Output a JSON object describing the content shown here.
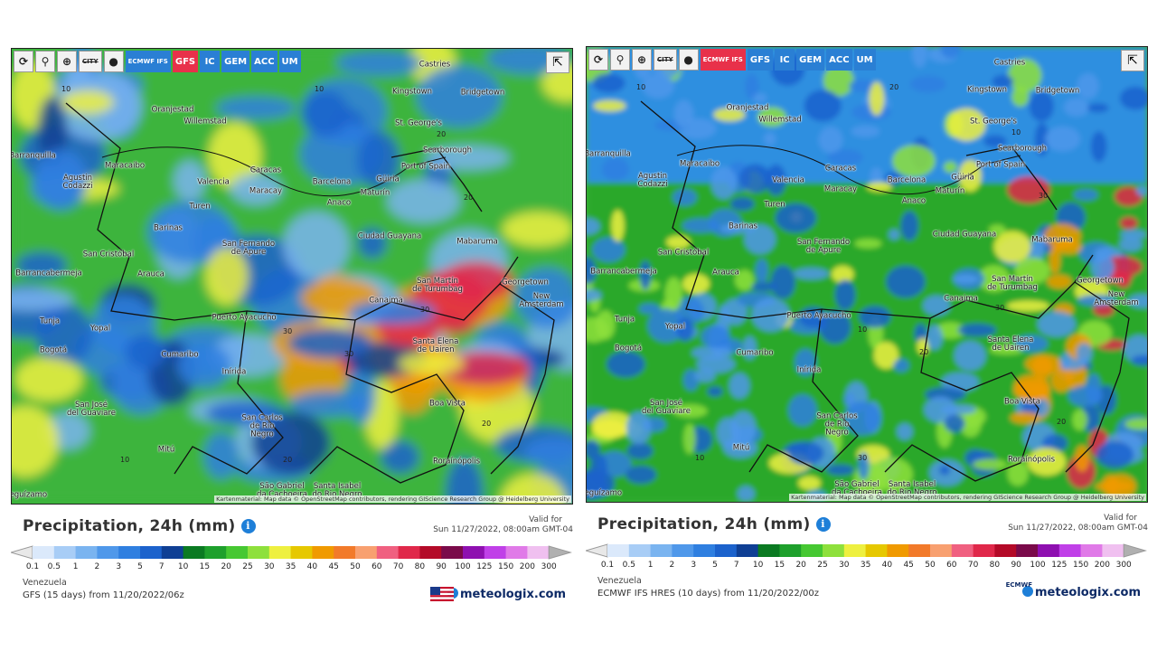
{
  "panels": [
    {
      "toolbar": [
        "CITY",
        "ECMWF IFS",
        "GFS",
        "IC",
        "GEM",
        "ACC",
        "UM"
      ],
      "active": "GFS",
      "cities": [
        "Castries",
        "Kingstown",
        "Bridgetown",
        "Oranjestad",
        "Willemstad",
        "St. George's",
        "Scarborough",
        "Barranquilla",
        "Port of Spain",
        "Caracas",
        "Maracaibo",
        "Agustin\nCodazzi",
        "Valencia",
        "Barcelona",
        "Güiria",
        "Maracay",
        "Maturín",
        "Anaco",
        "Turen",
        "Barinas",
        "Ciudad Guayana",
        "San Fernando\nde Apure",
        "Mabaruma",
        "San Cristóbal",
        "Barrancabermeja",
        "Arauca",
        "Georgetown",
        "San Martín\nde Turumbag",
        "New Amsterdam",
        "Canaima",
        "Puerto Ayacucho",
        "Tunja",
        "Yopal",
        "Bogotá",
        "Cumaribo",
        "Santa Elena\nde Uairen",
        "Inírida",
        "Boa Vista",
        "San José\ndel Guaviare",
        "San Carlos\nde Río\nNegro",
        "Mitú",
        "Roraínópolis",
        "São Gabriel\nda Cachoeira",
        "Santa Isabel\ndo Rio Negro",
        "Leguízamo"
      ],
      "contours": [
        "10",
        "10",
        "20",
        "20",
        "30",
        "30",
        "30",
        "20",
        "10",
        "20"
      ],
      "attribution": "Kartenmaterial: Map data © OpenStreetMap contributors, rendering GIScience Research Group @ Heidelberg University",
      "title": "Precipitation, 24h (mm)",
      "valid_label": "Valid for",
      "valid_time": "Sun 11/27/2022, 08:00am GMT-04",
      "region": "Venezuela",
      "model": "GFS (15 days) from 11/20/2022/06z",
      "brand": "meteologix.com"
    },
    {
      "toolbar": [
        "CITY",
        "ECMWF IFS",
        "GFS",
        "IC",
        "GEM",
        "ACC",
        "UM"
      ],
      "active": "ECMWF IFS",
      "cities": [
        "Castries",
        "Kingstown",
        "Bridgetown",
        "Oranjestad",
        "Willemstad",
        "St. George's",
        "Scarborough",
        "Barranquilla",
        "Port of Spain",
        "Caracas",
        "Maracaibo",
        "Agustin\nCodazzi",
        "Valencia",
        "Barcelona",
        "Güiria",
        "Maracay",
        "Maturín",
        "Anaco",
        "Turen",
        "Barinas",
        "Ciudad Guayana",
        "San Fernando\nde Apure",
        "Mabaruma",
        "San Cristóbal",
        "Barrancabermeja",
        "Arauca",
        "Georgetown",
        "San Martín\nde Turumbag",
        "New Amsterdam",
        "Canaima",
        "Puerto Ayacucho",
        "Tunja",
        "Yopal",
        "Bogotá",
        "Cumaribo",
        "Santa Elena\nde Uairen",
        "Inírida",
        "Boa Vista",
        "San José\ndel Guaviare",
        "San Carlos\nde Río\nNegro",
        "Mitú",
        "Roraínópolis",
        "São Gabriel\nda Cachoeira",
        "Santa Isabel\ndo Rio Negro",
        "Leguízamo"
      ],
      "contours": [
        "10",
        "20",
        "10",
        "30",
        "30",
        "20",
        "10",
        "20",
        "10",
        "30"
      ],
      "attribution": "Kartenmaterial: Map data © OpenStreetMap contributors, rendering GIScience Research Group @ Heidelberg University",
      "title": "Precipitation, 24h (mm)",
      "valid_label": "Valid for",
      "valid_time": "Sun 11/27/2022, 08:00am GMT-04",
      "region": "Venezuela",
      "model": "ECMWF IFS HRES (10 days) from 11/20/2022/00z",
      "brand": "meteologix.com",
      "logo": "ECMWF"
    }
  ],
  "legend": {
    "ticks": [
      0.1,
      0.5,
      1,
      2,
      3,
      5,
      7,
      10,
      15,
      20,
      25,
      30,
      35,
      40,
      45,
      50,
      60,
      70,
      80,
      90,
      100,
      125,
      150,
      200,
      300
    ],
    "colors": [
      "#dbe9fb",
      "#a8cdf6",
      "#7ab4f0",
      "#4f98ea",
      "#2f7fe0",
      "#1c62cc",
      "#0f3f94",
      "#0b7a22",
      "#1ea02c",
      "#46c832",
      "#8ee03c",
      "#eef040",
      "#e6c800",
      "#f09a00",
      "#f27a2a",
      "#f8a070",
      "#f06080",
      "#e0284a",
      "#b40a28",
      "#7a0a4a",
      "#8e10b0",
      "#c040e8",
      "#e07ae8",
      "#f0c0f0"
    ]
  }
}
